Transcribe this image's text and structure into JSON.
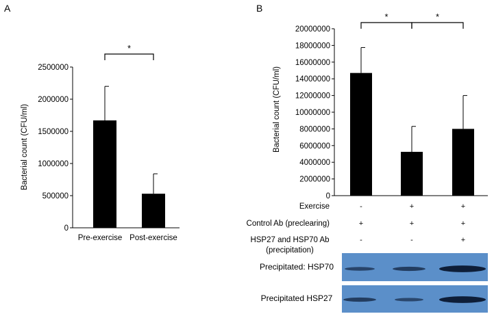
{
  "chart_data": [
    {
      "panel": "A",
      "type": "bar",
      "categories": [
        "Pre-exercise",
        "Post-exercise"
      ],
      "values": [
        1670000,
        530000
      ],
      "errors": [
        530000,
        310000
      ],
      "ylabel": "Bacterial count (CFU/ml)",
      "xlabel": "",
      "ylim": [
        0,
        2500000
      ],
      "yticks": [
        "0",
        "500000",
        "1000000",
        "1500000",
        "2000000",
        "2500000"
      ],
      "significance": [
        {
          "from": 0,
          "to": 1,
          "label": "*"
        }
      ],
      "bar_color": "#000000"
    },
    {
      "panel": "B",
      "type": "bar",
      "categories": [
        "",
        "",
        ""
      ],
      "values": [
        14700000,
        5250000,
        8000000
      ],
      "errors": [
        3050000,
        3050000,
        4000000
      ],
      "ylabel": "Bacterial count (CFU/ml)",
      "xlabel": "",
      "ylim": [
        0,
        20000000
      ],
      "yticks": [
        "0",
        "2000000",
        "4000000",
        "6000000",
        "8000000",
        "10000000",
        "12000000",
        "14000000",
        "16000000",
        "18000000",
        "20000000"
      ],
      "significance": [
        {
          "from": 0,
          "to": 1,
          "label": "*"
        },
        {
          "from": 1,
          "to": 2,
          "label": "*"
        }
      ],
      "bar_color": "#000000"
    }
  ],
  "conditions": [
    {
      "label": "Exercise",
      "signs": [
        "-",
        "+",
        "+"
      ]
    },
    {
      "label": "Control Ab (preclearing)",
      "signs": [
        "+",
        "+",
        "+"
      ]
    },
    {
      "label_lines": [
        "HSP27 and HSP70 Ab",
        "(precipitation)"
      ],
      "signs": [
        "-",
        "-",
        "+"
      ]
    }
  ],
  "blots": [
    {
      "label": "Precipitated: HSP70",
      "intensities": [
        0.35,
        0.45,
        0.95
      ]
    },
    {
      "label": "Precipitated HSP27",
      "intensities": [
        0.45,
        0.3,
        0.95
      ]
    }
  ],
  "colors": {
    "blot_background": "#5b8fc9",
    "band": "#0b1a33"
  }
}
